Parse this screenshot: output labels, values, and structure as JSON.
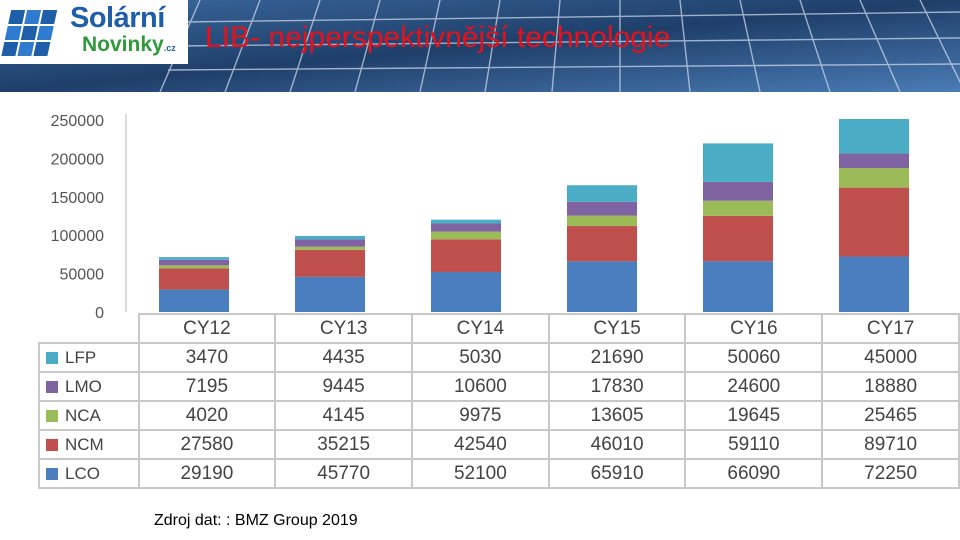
{
  "header": {
    "title": "LIB- nejperspektivnější technologie",
    "logo": {
      "word1": "Solární",
      "word2": "Novinky",
      "tld": ".cz"
    }
  },
  "chart_data": {
    "type": "bar",
    "stacked": true,
    "categories": [
      "CY12",
      "CY13",
      "CY14",
      "CY15",
      "CY16",
      "CY17"
    ],
    "series": [
      {
        "name": "LCO",
        "color": "#4a7ebf",
        "values": [
          29190,
          45770,
          52100,
          65910,
          66090,
          72250
        ]
      },
      {
        "name": "NCM",
        "color": "#c0504d",
        "values": [
          27580,
          35215,
          42540,
          46010,
          59110,
          89710
        ]
      },
      {
        "name": "NCA",
        "color": "#9bbb59",
        "values": [
          4020,
          4145,
          9975,
          13605,
          19645,
          25465
        ]
      },
      {
        "name": "LMO",
        "color": "#8064a2",
        "values": [
          7195,
          9445,
          10600,
          17830,
          24600,
          18880
        ]
      },
      {
        "name": "LFP",
        "color": "#4bacc6",
        "values": [
          3470,
          4435,
          5030,
          21690,
          50060,
          45000
        ]
      }
    ],
    "table_row_order": [
      "LFP",
      "LMO",
      "NCA",
      "NCM",
      "LCO"
    ],
    "yticks": [
      0,
      50000,
      100000,
      150000,
      200000,
      250000
    ],
    "ylim": [
      0,
      250000
    ],
    "grid": false,
    "legend": "data-table"
  },
  "source_note": "Zdroj dat: : BMZ Group 2019"
}
